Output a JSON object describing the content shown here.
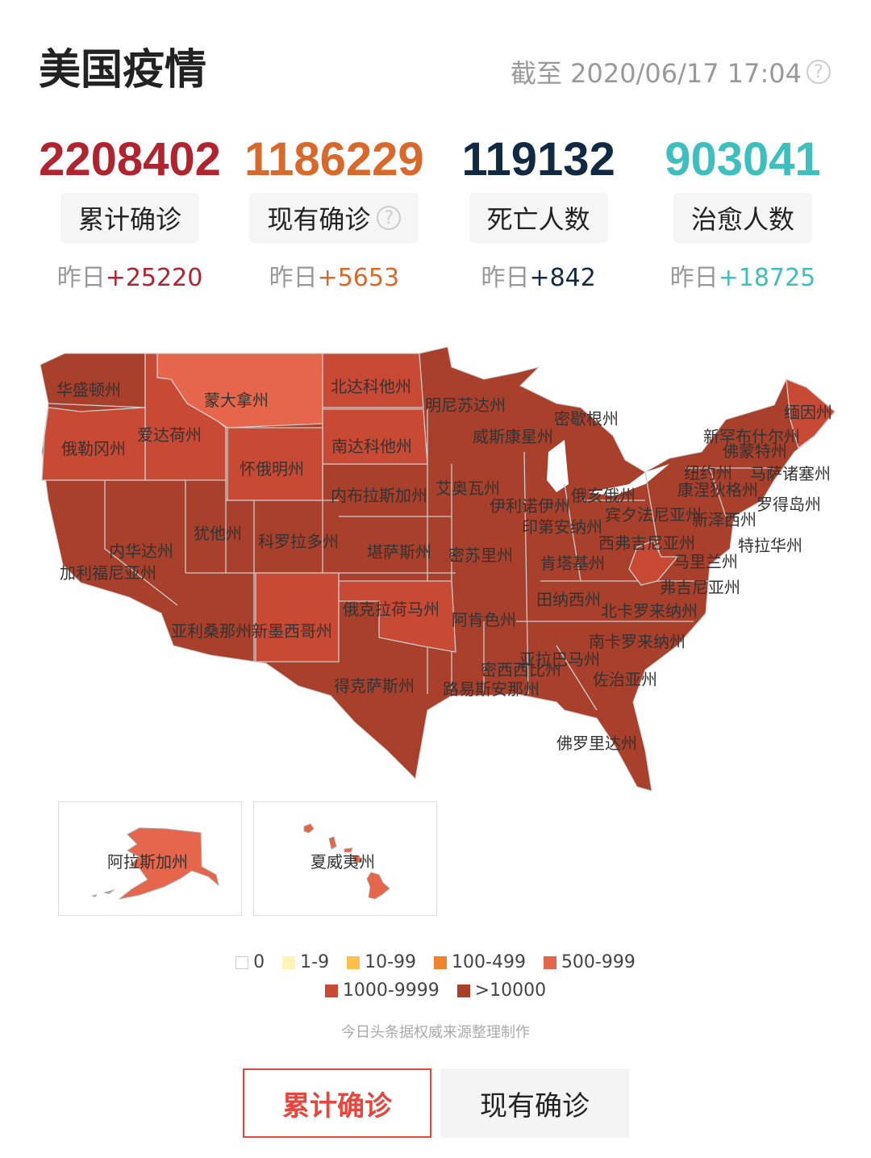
{
  "header": {
    "title": "美国疫情",
    "as_of": "截至 2020/06/17 17:04",
    "help_icon": "question-circle-icon"
  },
  "stats": [
    {
      "value": "2208402",
      "label": "累计确诊",
      "delta_prefix": "昨日",
      "delta": "+25220",
      "color": "#b0232f",
      "has_help": false
    },
    {
      "value": "1186229",
      "label": "现有确诊",
      "delta_prefix": "昨日",
      "delta": "+5653",
      "color": "#d9692a",
      "has_help": true
    },
    {
      "value": "119132",
      "label": "死亡人数",
      "delta_prefix": "昨日",
      "delta": "+842",
      "color": "#102a43",
      "has_help": false
    },
    {
      "value": "903041",
      "label": "治愈人数",
      "delta_prefix": "昨日",
      "delta": "+18725",
      "color": "#3dbfbf",
      "has_help": false
    }
  ],
  "legend": [
    {
      "label": "0",
      "color": "#ffffff"
    },
    {
      "label": "1-9",
      "color": "#fff3b8"
    },
    {
      "label": "10-99",
      "color": "#fbc04a"
    },
    {
      "label": "100-499",
      "color": "#f2832e"
    },
    {
      "label": "500-999",
      "color": "#e5664a"
    },
    {
      "label": "1000-9999",
      "color": "#c94a34"
    },
    {
      "label": ">10000",
      "color": "#a8402c"
    }
  ],
  "states": [
    {
      "name": "华盛顿州",
      "range": ">10000"
    },
    {
      "name": "蒙大拿州",
      "range": "500-999"
    },
    {
      "name": "北达科他州",
      "range": "1000-9999"
    },
    {
      "name": "明尼苏达州",
      "range": ">10000"
    },
    {
      "name": "密歇根州",
      "range": ">10000"
    },
    {
      "name": "缅因州",
      "range": "1000-9999"
    },
    {
      "name": "新罕布什尔州",
      "range": ">10000"
    },
    {
      "name": "佛蒙特州",
      "range": ">10000"
    },
    {
      "name": "爱达荷州",
      "range": "1000-9999"
    },
    {
      "name": "俄勒冈州",
      "range": "1000-9999"
    },
    {
      "name": "南达科他州",
      "range": "1000-9999"
    },
    {
      "name": "威斯康星州",
      "range": ">10000"
    },
    {
      "name": "怀俄明州",
      "range": "1000-9999"
    },
    {
      "name": "纽约州",
      "range": ">10000"
    },
    {
      "name": "马萨诸塞州",
      "range": ">10000"
    },
    {
      "name": "康涅狄格州",
      "range": ">10000"
    },
    {
      "name": "内布拉斯加州",
      "range": ">10000"
    },
    {
      "name": "艾奥瓦州",
      "range": ">10000"
    },
    {
      "name": "伊利诺伊州",
      "range": ">10000"
    },
    {
      "name": "俄亥俄州",
      "range": ">10000"
    },
    {
      "name": "罗得岛州",
      "range": ">10000"
    },
    {
      "name": "宾夕法尼亚州",
      "range": ">10000"
    },
    {
      "name": "新泽西州",
      "range": ">10000"
    },
    {
      "name": "印第安纳州",
      "range": ">10000"
    },
    {
      "name": "犹他州",
      "range": ">10000"
    },
    {
      "name": "科罗拉多州",
      "range": ">10000"
    },
    {
      "name": "内华达州",
      "range": ">10000"
    },
    {
      "name": "堪萨斯州",
      "range": ">10000"
    },
    {
      "name": "密苏里州",
      "range": ">10000"
    },
    {
      "name": "西弗吉尼亚州",
      "range": "1000-9999"
    },
    {
      "name": "特拉华州",
      "range": ">10000"
    },
    {
      "name": "加利福尼亚州",
      "range": ">10000"
    },
    {
      "name": "肯塔基州",
      "range": ">10000"
    },
    {
      "name": "马里兰州",
      "range": ">10000"
    },
    {
      "name": "弗吉尼亚州",
      "range": ">10000"
    },
    {
      "name": "田纳西州",
      "range": ">10000"
    },
    {
      "name": "北卡罗来纳州",
      "range": ">10000"
    },
    {
      "name": "俄克拉荷马州",
      "range": "1000-9999"
    },
    {
      "name": "阿肯色州",
      "range": ">10000"
    },
    {
      "name": "亚利桑那州",
      "range": ">10000"
    },
    {
      "name": "新墨西哥州",
      "range": "1000-9999"
    },
    {
      "name": "南卡罗来纳州",
      "range": ">10000"
    },
    {
      "name": "亚拉巴马州",
      "range": ">10000"
    },
    {
      "name": "密西西比州",
      "range": ">10000"
    },
    {
      "name": "佐治亚州",
      "range": ">10000"
    },
    {
      "name": "得克萨斯州",
      "range": ">10000"
    },
    {
      "name": "路易斯安那州",
      "range": ">10000"
    },
    {
      "name": "佛罗里达州",
      "range": ">10000"
    }
  ],
  "insets": [
    {
      "name": "阿拉斯加州",
      "range": "500-999"
    },
    {
      "name": "夏威夷州",
      "range": "500-999"
    }
  ],
  "source": "今日头条据权威来源整理制作",
  "tabs": [
    {
      "label": "累计确诊",
      "active": true
    },
    {
      "label": "现有确诊",
      "active": false
    }
  ]
}
